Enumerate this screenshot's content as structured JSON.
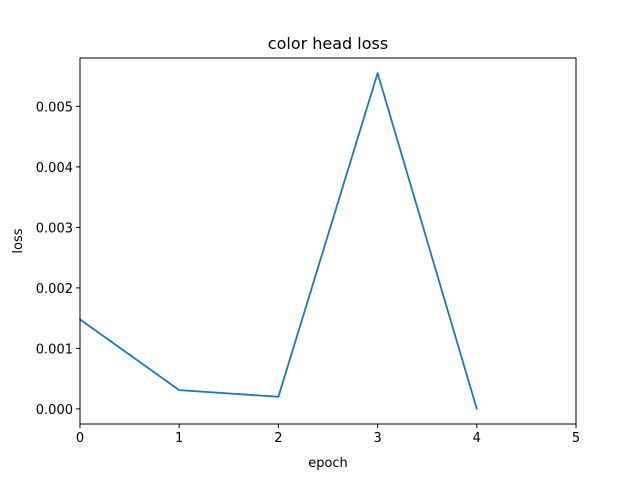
{
  "chart_data": {
    "type": "line",
    "title": "color head loss",
    "xlabel": "epoch",
    "ylabel": "loss",
    "xlim": [
      0,
      5
    ],
    "ylim": [
      -0.00025,
      0.0058
    ],
    "x_ticks": [
      0,
      1,
      2,
      3,
      4,
      5
    ],
    "x_tick_labels": [
      "0",
      "1",
      "2",
      "3",
      "4",
      "5"
    ],
    "y_ticks": [
      0.0,
      0.001,
      0.002,
      0.003,
      0.004,
      0.005
    ],
    "y_tick_labels": [
      "0.000",
      "0.001",
      "0.002",
      "0.003",
      "0.004",
      "0.005"
    ],
    "grid": false,
    "series": [
      {
        "color": "#1f77b4",
        "x": [
          0,
          1,
          2,
          3,
          4
        ],
        "y": [
          0.00148,
          0.00031,
          0.0002,
          0.00555,
          0.0
        ]
      }
    ]
  }
}
